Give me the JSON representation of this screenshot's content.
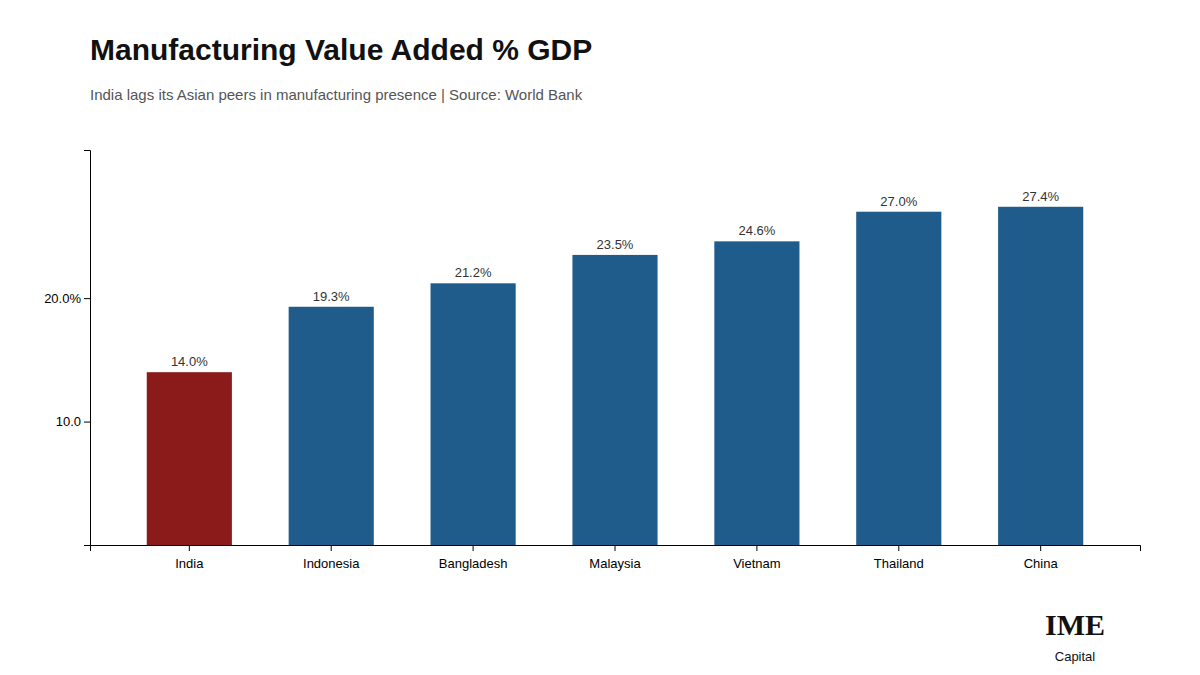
{
  "chart_data": {
    "type": "bar",
    "title": "Manufacturing Value Added % GDP",
    "subtitle": "India lags its Asian peers in manufacturing presence | Source: World Bank",
    "categories": [
      "India",
      "Indonesia",
      "Bangladesh",
      "Malaysia",
      "Vietnam",
      "Thailand",
      "China"
    ],
    "values": [
      14.0,
      19.3,
      21.2,
      23.5,
      24.6,
      27.0,
      27.4
    ],
    "value_labels": [
      "14.0%",
      "19.3%",
      "21.2%",
      "23.5%",
      "24.6%",
      "27.0%",
      "27.4%"
    ],
    "data_labels": true,
    "colors": [
      "#8B1A1A",
      "#1F5C8B",
      "#1F5C8B",
      "#1F5C8B",
      "#1F5C8B",
      "#1F5C8B",
      "#1F5C8B"
    ],
    "ylim": [
      0,
      32
    ],
    "yticks": [
      {
        "value": 10.0,
        "label": "10.0"
      },
      {
        "value": 20.0,
        "label": "20.0%"
      }
    ],
    "grid": false,
    "annotations": [
      "IME",
      "Capital"
    ]
  }
}
